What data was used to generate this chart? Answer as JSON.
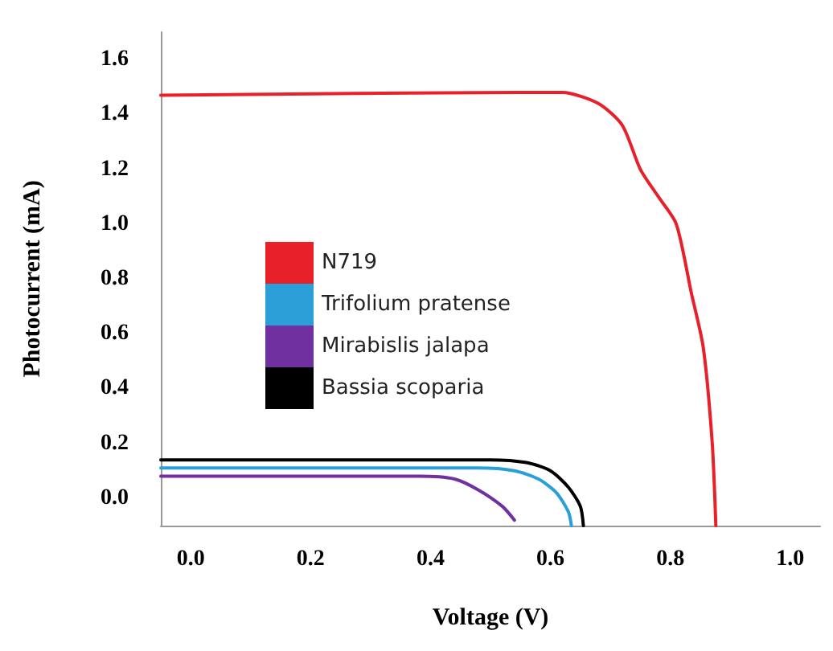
{
  "chart_data": {
    "type": "line",
    "xlabel": "Voltage (V)",
    "ylabel": "Photocurrent (mA)",
    "xlim": [
      -0.05,
      1.05
    ],
    "ylim": [
      -0.1,
      1.7
    ],
    "xticks": [
      {
        "value": 0,
        "label": "0.0"
      },
      {
        "value": 0.2,
        "label": "0.2"
      },
      {
        "value": 0.4,
        "label": "0.4"
      },
      {
        "value": 0.6,
        "label": "0.6"
      },
      {
        "value": 0.8,
        "label": "0.8"
      },
      {
        "value": 1,
        "label": "1.0"
      }
    ],
    "yticks": [
      {
        "value": 0,
        "label": "0.0"
      },
      {
        "value": 0.2,
        "label": "0.2"
      },
      {
        "value": 0.4,
        "label": "0.4"
      },
      {
        "value": 0.6,
        "label": "0.6"
      },
      {
        "value": 0.8,
        "label": "0.8"
      },
      {
        "value": 1,
        "label": "1.0"
      },
      {
        "value": 1.2,
        "label": "1.2"
      },
      {
        "value": 1.4,
        "label": "1.4"
      },
      {
        "value": 1.6,
        "label": "1.6"
      }
    ],
    "grid": false,
    "legend": "center",
    "marker": "none",
    "line_style": "solid",
    "series": [
      {
        "name": "N719",
        "color": "#e8202a",
        "x": [
          -0.05,
          0.55,
          0.62,
          0.68,
          0.72,
          0.75,
          0.78,
          0.81,
          0.835,
          0.855,
          0.87,
          0.876
        ],
        "values": [
          1.47,
          1.48,
          1.48,
          1.44,
          1.36,
          1.2,
          1.1,
          1.0,
          0.75,
          0.55,
          0.2,
          -0.1
        ]
      },
      {
        "name": "Trifolium pratense",
        "color": "#2a9fd8",
        "x": [
          -0.05,
          0.48,
          0.54,
          0.58,
          0.61,
          0.63,
          0.635
        ],
        "values": [
          0.11,
          0.11,
          0.1,
          0.07,
          0.02,
          -0.05,
          -0.1
        ]
      },
      {
        "name": "Mirabislis jalapa",
        "color": "#7030a0",
        "x": [
          -0.05,
          0.38,
          0.44,
          0.48,
          0.52,
          0.54
        ],
        "values": [
          0.08,
          0.08,
          0.07,
          0.03,
          -0.03,
          -0.08
        ]
      },
      {
        "name": "Bassia scoparia",
        "color": "#000000",
        "x": [
          -0.05,
          0.5,
          0.56,
          0.6,
          0.63,
          0.65,
          0.655
        ],
        "values": [
          0.14,
          0.14,
          0.13,
          0.1,
          0.04,
          -0.03,
          -0.1
        ]
      }
    ]
  }
}
